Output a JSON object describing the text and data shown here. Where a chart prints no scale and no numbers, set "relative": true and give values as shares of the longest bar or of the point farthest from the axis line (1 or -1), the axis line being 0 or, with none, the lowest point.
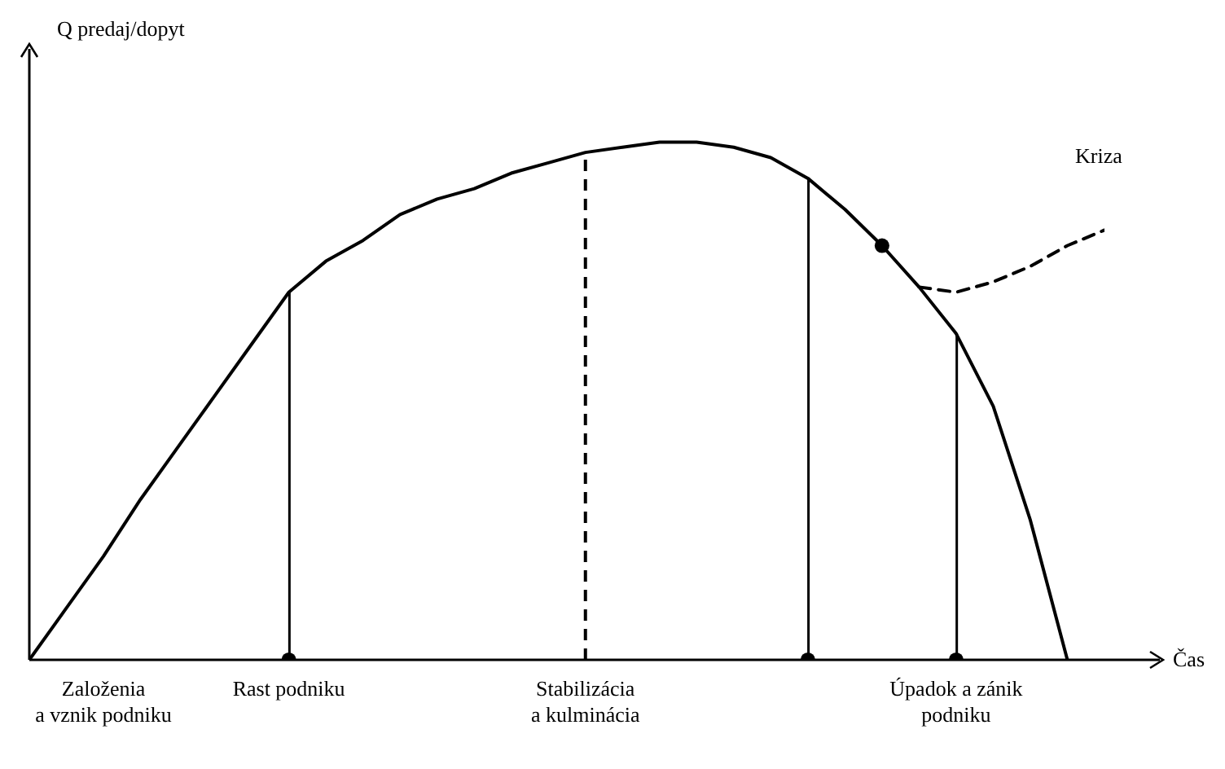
{
  "chart_data": {
    "type": "line",
    "relative": true,
    "xlabel": "Čas",
    "ylabel": "Q predaj/dopyt",
    "categories": [
      null,
      null,
      "Založenia\na vznik podniku",
      null,
      null,
      null,
      null,
      "Rast podniku",
      null,
      null,
      null,
      null,
      null,
      null,
      null,
      "Stabilizácia\na kulminácia",
      null,
      null,
      null,
      null,
      null,
      null,
      null,
      null,
      null,
      "Úpadok a zánik\npodniku",
      null,
      null,
      null,
      null
    ],
    "series": [
      {
        "color": "#000000",
        "line_style": "solid",
        "values": [
          0,
          0.1,
          0.2,
          0.31,
          0.41,
          0.51,
          0.61,
          0.71,
          0.77,
          0.81,
          0.86,
          0.89,
          0.91,
          0.94,
          0.96,
          0.98,
          0.99,
          1,
          1,
          0.99,
          0.97,
          0.93,
          0.87,
          0.8,
          0.72,
          0.63,
          0.49,
          0.27,
          0,
          null
        ]
      },
      {
        "type": "line",
        "color": "#000000",
        "line_style": "dashed",
        "values": [
          null,
          null,
          null,
          null,
          null,
          null,
          null,
          null,
          null,
          null,
          null,
          null,
          null,
          null,
          null,
          null,
          null,
          null,
          null,
          null,
          null,
          null,
          null,
          null,
          0.72,
          0.71,
          0.73,
          0.76,
          0.8,
          0.83
        ]
      },
      {
        "type": "bar",
        "color": "#000000",
        "values": [
          null,
          null,
          null,
          null,
          null,
          null,
          null,
          0.71,
          null,
          null,
          null,
          null,
          null,
          null,
          null,
          null,
          null,
          null,
          null,
          null,
          null,
          0.93,
          null,
          null,
          null,
          0.63,
          null,
          null,
          null,
          null
        ]
      },
      {
        "type": "scatter",
        "color": "#000000",
        "marker": "circle",
        "values": [
          null,
          null,
          null,
          null,
          null,
          null,
          null,
          0,
          null,
          null,
          null,
          null,
          null,
          null,
          null,
          null,
          null,
          null,
          null,
          null,
          null,
          0,
          null,
          0.8,
          null,
          0,
          null,
          null,
          null,
          null
        ]
      }
    ],
    "ref_lines": [
      {
        "axis": "x",
        "value": "Stabilizácia\na kulminácia",
        "line_style": "dashed",
        "color": "#000000"
      }
    ],
    "annotations": [
      "Kriza"
    ],
    "marker": "none",
    "grid": false,
    "legend": false
  }
}
